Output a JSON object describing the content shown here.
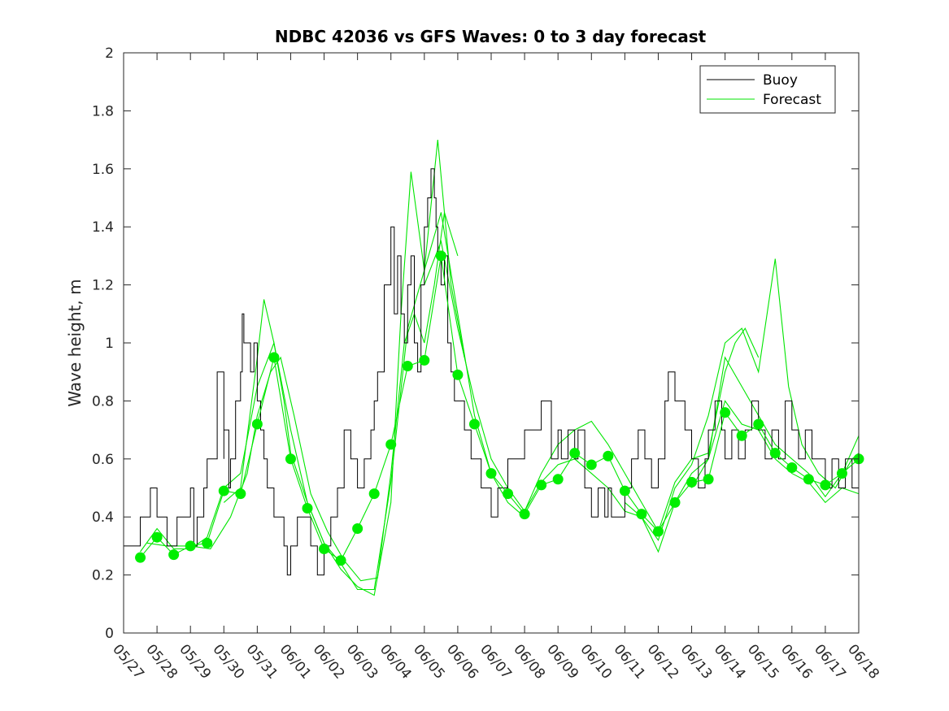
{
  "chart_data": {
    "type": "line",
    "title": "NDBC 42036 vs GFS Waves: 0 to 3 day forecast",
    "xlabel": "",
    "ylabel": "Wave height, m",
    "xlim": [
      "05/27",
      "06/18"
    ],
    "ylim": [
      0,
      2
    ],
    "x_tick_labels": [
      "05/27",
      "05/28",
      "05/29",
      "05/30",
      "05/31",
      "06/01",
      "06/02",
      "06/03",
      "06/04",
      "06/05",
      "06/06",
      "06/07",
      "06/08",
      "06/09",
      "06/10",
      "06/11",
      "06/12",
      "06/13",
      "06/14",
      "06/15",
      "06/16",
      "06/17",
      "06/18"
    ],
    "y_tick_labels": [
      "0",
      "0.2",
      "0.4",
      "0.6",
      "0.8",
      "1",
      "1.2",
      "1.4",
      "1.6",
      "1.8",
      "2"
    ],
    "grid": false,
    "legend_position": "top-right",
    "colors": {
      "buoy": "#000000",
      "forecast": "#00e600",
      "markers": "#00ee00"
    },
    "series": [
      {
        "name": "Buoy",
        "x": [
          0,
          0.5,
          0.5,
          0.8,
          0.8,
          1,
          1,
          1.3,
          1.3,
          1.6,
          1.6,
          2,
          2,
          2.1,
          2.2,
          2.2,
          2.4,
          2.4,
          2.5,
          2.8,
          2.8,
          3.0,
          3.0,
          3.15,
          3.2,
          3.35,
          3.5,
          3.55,
          3.6,
          3.8,
          3.9,
          4.0,
          4.1,
          4.2,
          4.3,
          4.4,
          4.5,
          4.6,
          4.7,
          4.8,
          4.9,
          5.0,
          5.2,
          5.4,
          5.6,
          5.8,
          6.0,
          6.2,
          6.4,
          6.6,
          6.8,
          7.0,
          7.2,
          7.4,
          7.5,
          7.6,
          7.8,
          8.0,
          8.1,
          8.2,
          8.3,
          8.4,
          8.5,
          8.6,
          8.7,
          8.8,
          8.9,
          9.0,
          9.1,
          9.2,
          9.3,
          9.35,
          9.4,
          9.5,
          9.6,
          9.7,
          9.8,
          9.9,
          10.0,
          10.2,
          10.4,
          10.5,
          10.7,
          10.9,
          11.0,
          11.2,
          11.5,
          11.8,
          12.0,
          12.3,
          12.5,
          12.8,
          13.0,
          13.1,
          13.3,
          13.5,
          13.6,
          13.8,
          14.0,
          14.2,
          14.4,
          14.5,
          14.6,
          14.8,
          15.0,
          15.2,
          15.4,
          15.6,
          15.8,
          16.0,
          16.2,
          16.3,
          16.5,
          16.8,
          17.0,
          17.2,
          17.4,
          17.5,
          17.7,
          17.9,
          18.0,
          18.2,
          18.4,
          18.6,
          18.8,
          19.0,
          19.2,
          19.4,
          19.6,
          19.8,
          20.0,
          20.2,
          20.4,
          20.6,
          20.8,
          21.0,
          21.2,
          21.4,
          21.6,
          21.8,
          22.0
        ],
        "values": [
          0.3,
          0.3,
          0.4,
          0.4,
          0.5,
          0.5,
          0.4,
          0.4,
          0.3,
          0.3,
          0.4,
          0.4,
          0.5,
          0.3,
          0.3,
          0.4,
          0.4,
          0.5,
          0.6,
          0.7,
          0.9,
          0.6,
          0.7,
          0.5,
          0.6,
          0.8,
          0.9,
          1.1,
          1.0,
          0.9,
          1.0,
          0.8,
          0.7,
          0.6,
          0.5,
          0.5,
          0.4,
          0.4,
          0.4,
          0.3,
          0.2,
          0.3,
          0.4,
          0.4,
          0.3,
          0.2,
          0.3,
          0.4,
          0.5,
          0.7,
          0.6,
          0.5,
          0.6,
          0.7,
          0.8,
          0.9,
          1.2,
          1.4,
          1.1,
          1.3,
          1.1,
          1.0,
          1.2,
          1.3,
          1.0,
          0.9,
          1.2,
          1.4,
          1.5,
          1.6,
          1.5,
          1.4,
          1.3,
          1.2,
          1.3,
          1.0,
          0.9,
          0.8,
          0.8,
          0.7,
          0.6,
          0.6,
          0.5,
          0.5,
          0.4,
          0.5,
          0.6,
          0.6,
          0.7,
          0.7,
          0.8,
          0.6,
          0.7,
          0.6,
          0.7,
          0.6,
          0.7,
          0.5,
          0.4,
          0.5,
          0.4,
          0.5,
          0.4,
          0.4,
          0.5,
          0.6,
          0.7,
          0.6,
          0.5,
          0.6,
          0.8,
          0.9,
          0.8,
          0.7,
          0.6,
          0.5,
          0.6,
          0.7,
          0.8,
          0.7,
          0.6,
          0.7,
          0.6,
          0.7,
          0.8,
          0.7,
          0.6,
          0.7,
          0.6,
          0.8,
          0.7,
          0.6,
          0.7,
          0.6,
          0.6,
          0.5,
          0.6,
          0.5,
          0.6,
          0.5,
          0.5
        ]
      },
      {
        "name": "Forecast",
        "x": [
          0.5,
          1,
          1.5,
          2,
          2.5,
          3,
          3.5,
          4,
          4.5,
          5,
          5.5,
          6,
          6.5,
          7,
          7.5,
          8,
          8.5,
          9,
          9.5,
          10,
          10.5,
          11,
          11.5,
          12,
          12.5,
          13,
          13.5,
          14,
          14.5,
          15,
          15.5,
          16,
          16.5,
          17,
          17.5,
          18,
          18.5,
          19,
          19.5,
          20,
          20.5,
          21,
          21.5,
          22
        ],
        "values": [
          0.26,
          0.33,
          0.27,
          0.3,
          0.31,
          0.49,
          0.48,
          0.72,
          0.95,
          0.6,
          0.43,
          0.29,
          0.25,
          0.36,
          0.48,
          0.65,
          0.92,
          0.94,
          1.3,
          0.89,
          0.72,
          0.55,
          0.48,
          0.41,
          0.51,
          0.53,
          0.62,
          0.58,
          0.61,
          0.49,
          0.41,
          0.35,
          0.45,
          0.52,
          0.53,
          0.76,
          0.68,
          0.72,
          0.62,
          0.57,
          0.53,
          0.51,
          0.55,
          0.6
        ]
      }
    ],
    "forecast_runs": [
      {
        "x": [
          0.7,
          1.3,
          2.0,
          2.6,
          3.2,
          3.7,
          4.0,
          4.4,
          4.7,
          5.1,
          5.6,
          6.1,
          6.6,
          7.1,
          7.6,
          8.0,
          8.4,
          8.7,
          9.0,
          9.3,
          9.6,
          10.0
        ],
        "values": [
          0.31,
          0.3,
          0.3,
          0.29,
          0.4,
          0.55,
          0.75,
          0.9,
          0.95,
          0.75,
          0.48,
          0.35,
          0.25,
          0.18,
          0.19,
          0.55,
          1.0,
          1.1,
          1.0,
          1.2,
          1.45,
          1.3
        ]
      },
      {
        "x": [
          0.5,
          1.0,
          1.5,
          2.0,
          2.5,
          3.0,
          3.5,
          4.0,
          4.5,
          5.0,
          5.5,
          6.0,
          6.5,
          7.0,
          7.5,
          8.0,
          8.5,
          9.0,
          9.5,
          10.0,
          10.5,
          11.0,
          11.5,
          12.0
        ],
        "values": [
          0.28,
          0.36,
          0.29,
          0.29,
          0.33,
          0.5,
          0.55,
          0.85,
          1.0,
          0.7,
          0.45,
          0.31,
          0.24,
          0.15,
          0.15,
          0.52,
          1.05,
          1.25,
          1.45,
          1.1,
          0.75,
          0.55,
          0.45,
          0.4
        ]
      },
      {
        "x": [
          3.0,
          3.5,
          4.0,
          4.2,
          4.5,
          4.8,
          5.0,
          5.5,
          6.0,
          6.5,
          7.0,
          7.5,
          8.0,
          8.3,
          8.6,
          9.0,
          9.4,
          9.8,
          10.2
        ],
        "values": [
          0.45,
          0.5,
          0.95,
          1.15,
          1.0,
          0.8,
          0.62,
          0.45,
          0.31,
          0.22,
          0.16,
          0.13,
          0.45,
          1.1,
          1.59,
          1.25,
          1.7,
          1.2,
          0.95
        ]
      },
      {
        "x": [
          9.0,
          9.5,
          10.0,
          10.5,
          11.0,
          11.5,
          12.0,
          12.5,
          13.0,
          13.5,
          14.0,
          14.5,
          15.0,
          15.5,
          16.0,
          16.5,
          17.0,
          17.5,
          18.0,
          18.3,
          18.6,
          19.0
        ],
        "values": [
          1.2,
          1.35,
          1.05,
          0.8,
          0.6,
          0.5,
          0.42,
          0.55,
          0.65,
          0.7,
          0.73,
          0.65,
          0.55,
          0.45,
          0.35,
          0.52,
          0.6,
          0.62,
          0.9,
          1.0,
          1.05,
          0.95
        ]
      },
      {
        "x": [
          12.0,
          12.5,
          13.0,
          13.5,
          14.0,
          14.5,
          15.0,
          15.5,
          16.0,
          16.5,
          17.0,
          17.5,
          18.0,
          18.5,
          19.0,
          19.5,
          19.9,
          20.3,
          20.8,
          21.3,
          21.8,
          22.0
        ],
        "values": [
          0.42,
          0.52,
          0.58,
          0.6,
          0.55,
          0.5,
          0.42,
          0.4,
          0.32,
          0.5,
          0.58,
          0.75,
          1.0,
          1.05,
          0.9,
          1.29,
          0.85,
          0.65,
          0.55,
          0.5,
          0.6,
          0.62
        ]
      },
      {
        "x": [
          15.0,
          15.5,
          16.0,
          16.5,
          17.0,
          17.5,
          18.0,
          18.5,
          19.0,
          19.5,
          20.0,
          20.5,
          21.0,
          21.5,
          22.0
        ],
        "values": [
          0.45,
          0.4,
          0.28,
          0.45,
          0.55,
          0.6,
          0.95,
          0.85,
          0.75,
          0.65,
          0.6,
          0.55,
          0.47,
          0.55,
          0.68
        ]
      },
      {
        "x": [
          17.0,
          17.5,
          18.0,
          18.5,
          19.0,
          19.5,
          20.0,
          20.5,
          21.0,
          21.5,
          22.0
        ],
        "values": [
          0.5,
          0.6,
          0.8,
          0.72,
          0.7,
          0.6,
          0.55,
          0.52,
          0.45,
          0.5,
          0.48
        ]
      }
    ]
  }
}
